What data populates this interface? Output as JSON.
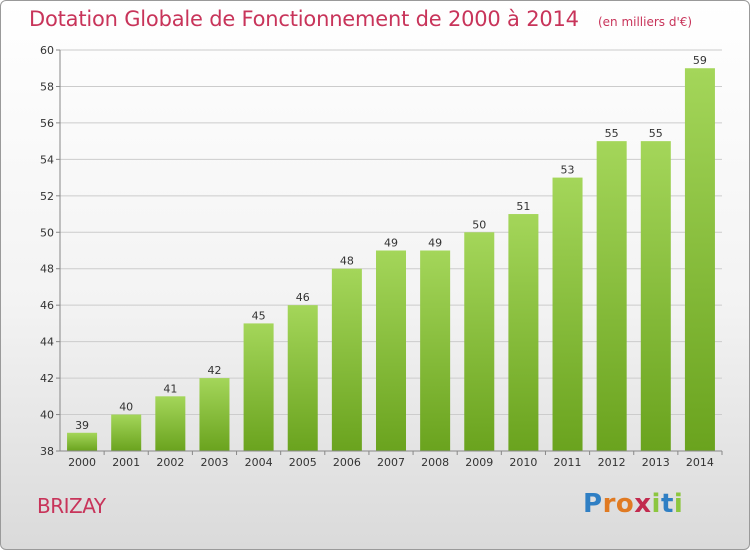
{
  "header": {
    "title": "Dotation Globale de Fonctionnement de 2000 à 2014",
    "unit": "(en milliers d'€)"
  },
  "footer": {
    "place": "BRIZAY",
    "logo_letters": [
      "P",
      "r",
      "o",
      "x",
      "i",
      "t",
      "i"
    ],
    "logo_colors": [
      "#2f7fc4",
      "#e07a22",
      "#e07a22",
      "#c22a4e",
      "#8cc63f",
      "#2f7fc4",
      "#8cc63f"
    ]
  },
  "colors": {
    "title": "#c8345a",
    "bar_light": "#a4d65a",
    "bar_dark": "#6aa31e",
    "grid": "#cccccc"
  },
  "chart_data": {
    "type": "bar",
    "title": "Dotation Globale de Fonctionnement de 2000 à 2014",
    "subtitle": "(en milliers d'€)",
    "categories": [
      "2000",
      "2001",
      "2002",
      "2003",
      "2004",
      "2005",
      "2006",
      "2007",
      "2008",
      "2009",
      "2010",
      "2011",
      "2012",
      "2013",
      "2014"
    ],
    "values": [
      39,
      40,
      41,
      42,
      45,
      46,
      48,
      49,
      49,
      50,
      51,
      53,
      55,
      55,
      59
    ],
    "ylim": [
      38,
      60
    ],
    "yticks": [
      38,
      40,
      42,
      44,
      46,
      48,
      50,
      52,
      54,
      56,
      58,
      60
    ],
    "grid": true,
    "legend": "none",
    "data_labels": true
  }
}
